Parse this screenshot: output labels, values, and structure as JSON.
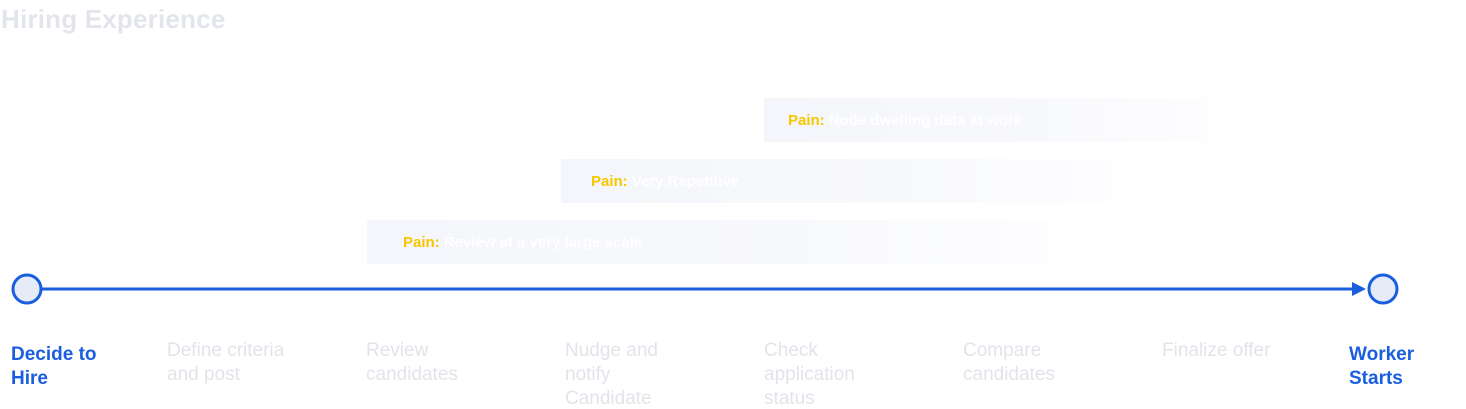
{
  "title": "Hiring Experience",
  "colors": {
    "accent": "#1a5ee0",
    "pain_label": "#f6c600",
    "muted_text": "#e2e4ea",
    "bar_fill": "#f4f6fb",
    "node_fill": "#e6ecf7"
  },
  "pains": [
    {
      "label": "Pain:",
      "text": "Review at a very large scale"
    },
    {
      "label": "Pain:",
      "text": "Very Repetitive"
    },
    {
      "label": "Pain:",
      "text": "Node dwelling data at work"
    }
  ],
  "timeline": {
    "start": {
      "label_line1": "Decide to",
      "label_line2": "Hire"
    },
    "steps": [
      {
        "line1": "Define criteria",
        "line2": "and post",
        "line3": ""
      },
      {
        "line1": "Review",
        "line2": "candidates",
        "line3": ""
      },
      {
        "line1": "Nudge and",
        "line2": "notify",
        "line3": "Candidate"
      },
      {
        "line1": "Check",
        "line2": "application",
        "line3": "status"
      },
      {
        "line1": "Compare",
        "line2": "candidates",
        "line3": ""
      },
      {
        "line1": "Finalize offer",
        "line2": "",
        "line3": ""
      }
    ],
    "end": {
      "label_line1": "Worker",
      "label_line2": "Starts"
    }
  }
}
